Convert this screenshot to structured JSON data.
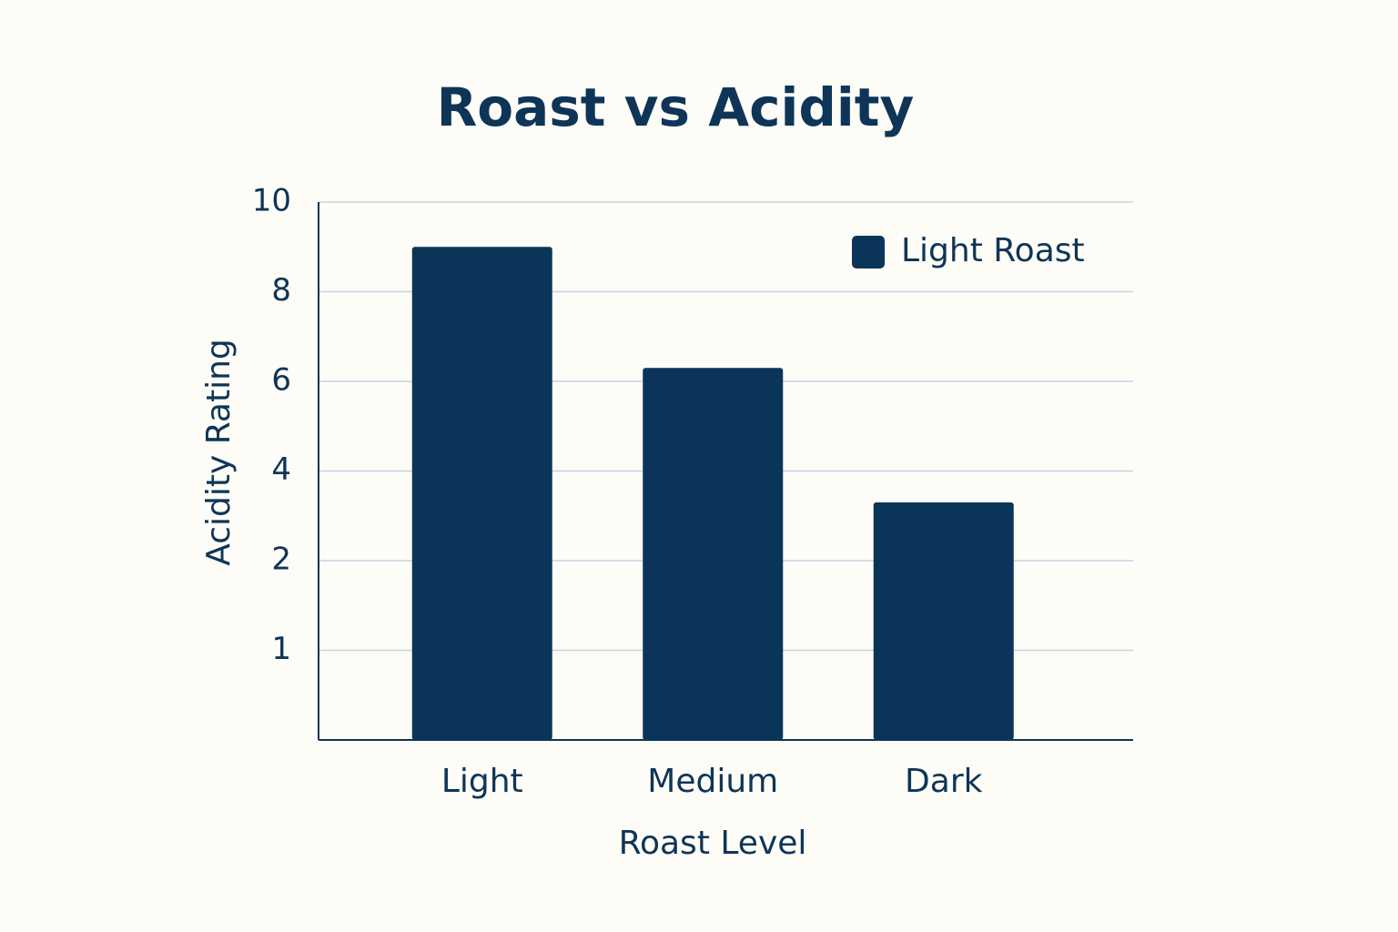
{
  "chart_data": {
    "type": "bar",
    "title": "Roast vs Acidity",
    "x_label": "Roast Level",
    "y_label": "Acidity Rating",
    "categories": [
      "Light",
      "Medium",
      "Dark"
    ],
    "series": [
      {
        "name": "Light Roast",
        "color": "#0b3558",
        "values": [
          9,
          6.3,
          3.3
        ]
      }
    ],
    "ylim": [
      0,
      10
    ],
    "yticks": [
      1,
      2,
      4,
      6,
      8,
      10
    ],
    "grid": true,
    "legend": "upper right"
  }
}
